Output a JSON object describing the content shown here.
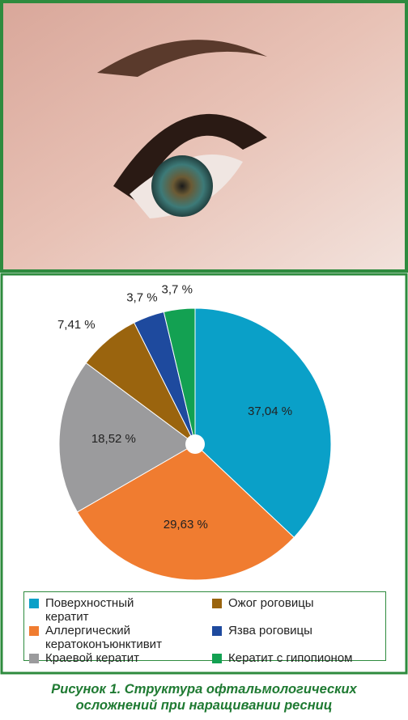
{
  "chart_data": {
    "type": "pie",
    "categories": [
      "Поверхностный кератит",
      "Аллергический кератоконъюнктивит",
      "Краевой кератит",
      "Ожог роговицы",
      "Язва роговицы",
      "Кератит с гипопионом"
    ],
    "values": [
      37.04,
      29.63,
      18.52,
      7.41,
      3.7,
      3.7
    ],
    "value_labels": [
      "37,04 %",
      "29,63 %",
      "18,52 %",
      "7,41 %",
      "3,7 %",
      "3,7 %"
    ],
    "colors": [
      "#0aa0c8",
      "#f07c30",
      "#9b9b9d",
      "#9a640e",
      "#1e4a9e",
      "#13a152"
    ],
    "caption": "Рисунок 1.  Структура офтальмологических осложнений при наращивании ресниц"
  }
}
